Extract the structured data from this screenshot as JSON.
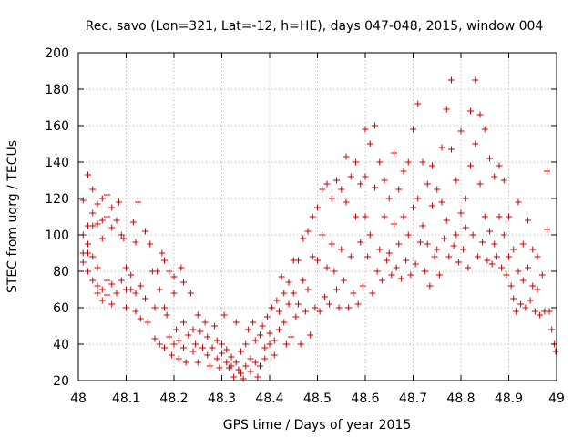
{
  "chart_data": {
    "type": "scatter",
    "title": "Rec. savo (Lon=321, Lat=-12, h=HE), days 047-048, 2015, window 004",
    "xlabel": "GPS time / Days of year 2015",
    "ylabel": "STEC from uqrg / TECUs",
    "xlim": [
      48.0,
      49.0
    ],
    "ylim": [
      20,
      200
    ],
    "xticks": [
      48,
      48.1,
      48.2,
      48.3,
      48.4,
      48.5,
      48.6,
      48.7,
      48.8,
      48.9,
      49
    ],
    "xtick_labels": [
      "48",
      "48.1",
      "48.2",
      "48.3",
      "48.4",
      "48.5",
      "48.6",
      "48.7",
      "48.8",
      "48.9",
      "49"
    ],
    "yticks": [
      20,
      40,
      60,
      80,
      100,
      120,
      140,
      160,
      180,
      200
    ],
    "ytick_labels": [
      "20",
      "40",
      "60",
      "80",
      "100",
      "120",
      "140",
      "160",
      "180",
      "200"
    ],
    "grid": true,
    "marker": "plus",
    "color": "#cc0000",
    "points": [
      [
        48.01,
        119
      ],
      [
        48.01,
        100
      ],
      [
        48.01,
        90
      ],
      [
        48.01,
        85
      ],
      [
        48.02,
        133
      ],
      [
        48.02,
        105
      ],
      [
        48.02,
        95
      ],
      [
        48.02,
        90
      ],
      [
        48.02,
        80
      ],
      [
        48.03,
        125
      ],
      [
        48.03,
        112
      ],
      [
        48.03,
        105
      ],
      [
        48.03,
        88
      ],
      [
        48.03,
        75
      ],
      [
        48.04,
        117
      ],
      [
        48.04,
        106
      ],
      [
        48.04,
        82
      ],
      [
        48.04,
        72
      ],
      [
        48.04,
        68
      ],
      [
        48.05,
        120
      ],
      [
        48.05,
        108
      ],
      [
        48.05,
        98
      ],
      [
        48.05,
        70
      ],
      [
        48.05,
        64
      ],
      [
        48.06,
        122
      ],
      [
        48.06,
        110
      ],
      [
        48.06,
        75
      ],
      [
        48.06,
        67
      ],
      [
        48.07,
        115
      ],
      [
        48.07,
        104
      ],
      [
        48.07,
        73
      ],
      [
        48.07,
        62
      ],
      [
        48.08,
        108
      ],
      [
        48.08,
        68
      ],
      [
        48.085,
        118
      ],
      [
        48.09,
        100
      ],
      [
        48.09,
        75
      ],
      [
        48.095,
        98
      ],
      [
        48.1,
        82
      ],
      [
        48.1,
        70
      ],
      [
        48.1,
        60
      ],
      [
        48.11,
        78
      ],
      [
        48.11,
        70
      ],
      [
        48.115,
        107
      ],
      [
        48.12,
        96
      ],
      [
        48.12,
        68
      ],
      [
        48.12,
        58
      ],
      [
        48.125,
        118
      ],
      [
        48.13,
        72
      ],
      [
        48.13,
        54
      ],
      [
        48.14,
        102
      ],
      [
        48.14,
        65
      ],
      [
        48.145,
        52
      ],
      [
        48.15,
        95
      ],
      [
        48.155,
        80
      ],
      [
        48.16,
        60
      ],
      [
        48.16,
        43
      ],
      [
        48.165,
        80
      ],
      [
        48.17,
        70
      ],
      [
        48.17,
        40
      ],
      [
        48.175,
        90
      ],
      [
        48.18,
        86
      ],
      [
        48.18,
        60
      ],
      [
        48.18,
        38
      ],
      [
        48.185,
        56
      ],
      [
        48.19,
        80
      ],
      [
        48.19,
        44
      ],
      [
        48.195,
        34
      ],
      [
        48.2,
        77
      ],
      [
        48.2,
        68
      ],
      [
        48.2,
        40
      ],
      [
        48.205,
        48
      ],
      [
        48.21,
        42
      ],
      [
        48.21,
        32
      ],
      [
        48.215,
        82
      ],
      [
        48.22,
        74
      ],
      [
        48.22,
        52
      ],
      [
        48.22,
        38
      ],
      [
        48.225,
        30
      ],
      [
        48.23,
        45
      ],
      [
        48.235,
        68
      ],
      [
        48.24,
        48
      ],
      [
        48.24,
        36
      ],
      [
        48.245,
        40
      ],
      [
        48.25,
        56
      ],
      [
        48.25,
        30
      ],
      [
        48.255,
        47
      ],
      [
        48.26,
        38
      ],
      [
        48.265,
        52
      ],
      [
        48.27,
        44
      ],
      [
        48.27,
        34
      ],
      [
        48.275,
        28
      ],
      [
        48.28,
        38
      ],
      [
        48.285,
        50
      ],
      [
        48.29,
        42
      ],
      [
        48.29,
        32
      ],
      [
        48.295,
        27
      ],
      [
        48.3,
        40
      ],
      [
        48.3,
        35
      ],
      [
        48.305,
        56
      ],
      [
        48.31,
        37
      ],
      [
        48.31,
        30
      ],
      [
        48.315,
        27
      ],
      [
        48.32,
        33
      ],
      [
        48.32,
        28
      ],
      [
        48.325,
        22
      ],
      [
        48.33,
        52
      ],
      [
        48.33,
        30
      ],
      [
        48.335,
        26
      ],
      [
        48.34,
        36
      ],
      [
        48.34,
        24
      ],
      [
        48.345,
        21
      ],
      [
        48.35,
        40
      ],
      [
        48.35,
        28
      ],
      [
        48.355,
        48
      ],
      [
        48.36,
        32
      ],
      [
        48.36,
        25
      ],
      [
        48.365,
        52
      ],
      [
        48.37,
        42
      ],
      [
        48.37,
        30
      ],
      [
        48.375,
        22
      ],
      [
        48.38,
        45
      ],
      [
        48.38,
        28
      ],
      [
        48.385,
        50
      ],
      [
        48.39,
        38
      ],
      [
        48.39,
        32
      ],
      [
        48.395,
        55
      ],
      [
        48.4,
        46
      ],
      [
        48.4,
        40
      ],
      [
        48.405,
        60
      ],
      [
        48.41,
        42
      ],
      [
        48.41,
        34
      ],
      [
        48.415,
        64
      ],
      [
        48.42,
        58
      ],
      [
        48.42,
        48
      ],
      [
        48.425,
        77
      ],
      [
        48.43,
        68
      ],
      [
        48.43,
        52
      ],
      [
        48.435,
        40
      ],
      [
        48.44,
        74
      ],
      [
        48.44,
        62
      ],
      [
        48.445,
        44
      ],
      [
        48.45,
        86
      ],
      [
        48.45,
        68
      ],
      [
        48.455,
        55
      ],
      [
        48.46,
        86
      ],
      [
        48.46,
        62
      ],
      [
        48.465,
        40
      ],
      [
        48.47,
        98
      ],
      [
        48.47,
        75
      ],
      [
        48.475,
        58
      ],
      [
        48.48,
        102
      ],
      [
        48.48,
        70
      ],
      [
        48.485,
        45
      ],
      [
        48.49,
        110
      ],
      [
        48.49,
        88
      ],
      [
        48.495,
        60
      ],
      [
        48.5,
        115
      ],
      [
        48.5,
        86
      ],
      [
        48.505,
        58
      ],
      [
        48.51,
        125
      ],
      [
        48.51,
        100
      ],
      [
        48.515,
        66
      ],
      [
        48.52,
        128
      ],
      [
        48.52,
        82
      ],
      [
        48.525,
        62
      ],
      [
        48.53,
        120
      ],
      [
        48.53,
        95
      ],
      [
        48.535,
        80
      ],
      [
        48.54,
        130
      ],
      [
        48.54,
        70
      ],
      [
        48.545,
        60
      ],
      [
        48.55,
        125
      ],
      [
        48.55,
        92
      ],
      [
        48.555,
        75
      ],
      [
        48.56,
        143
      ],
      [
        48.56,
        118
      ],
      [
        48.565,
        60
      ],
      [
        48.57,
        132
      ],
      [
        48.57,
        88
      ],
      [
        48.575,
        68
      ],
      [
        48.58,
        140
      ],
      [
        48.58,
        110
      ],
      [
        48.585,
        62
      ],
      [
        48.59,
        128
      ],
      [
        48.59,
        96
      ],
      [
        48.595,
        72
      ],
      [
        48.6,
        158
      ],
      [
        48.6,
        132
      ],
      [
        48.6,
        110
      ],
      [
        48.605,
        88
      ],
      [
        48.61,
        150
      ],
      [
        48.61,
        100
      ],
      [
        48.615,
        68
      ],
      [
        48.62,
        160
      ],
      [
        48.62,
        126
      ],
      [
        48.625,
        80
      ],
      [
        48.63,
        140
      ],
      [
        48.63,
        92
      ],
      [
        48.635,
        75
      ],
      [
        48.64,
        130
      ],
      [
        48.64,
        110
      ],
      [
        48.645,
        86
      ],
      [
        48.65,
        120
      ],
      [
        48.65,
        90
      ],
      [
        48.655,
        78
      ],
      [
        48.66,
        145
      ],
      [
        48.66,
        106
      ],
      [
        48.665,
        82
      ],
      [
        48.67,
        125
      ],
      [
        48.67,
        95
      ],
      [
        48.675,
        76
      ],
      [
        48.68,
        135
      ],
      [
        48.68,
        110
      ],
      [
        48.685,
        86
      ],
      [
        48.69,
        140
      ],
      [
        48.69,
        100
      ],
      [
        48.695,
        78
      ],
      [
        48.7,
        158
      ],
      [
        48.7,
        115
      ],
      [
        48.705,
        84
      ],
      [
        48.71,
        172
      ],
      [
        48.71,
        120
      ],
      [
        48.715,
        96
      ],
      [
        48.72,
        140
      ],
      [
        48.72,
        105
      ],
      [
        48.725,
        80
      ],
      [
        48.73,
        128
      ],
      [
        48.73,
        95
      ],
      [
        48.735,
        72
      ],
      [
        48.74,
        138
      ],
      [
        48.74,
        116
      ],
      [
        48.745,
        88
      ],
      [
        48.75,
        125
      ],
      [
        48.75,
        92
      ],
      [
        48.755,
        78
      ],
      [
        48.76,
        148
      ],
      [
        48.76,
        118
      ],
      [
        48.765,
        98
      ],
      [
        48.77,
        169
      ],
      [
        48.77,
        108
      ],
      [
        48.775,
        88
      ],
      [
        48.78,
        185
      ],
      [
        48.78,
        147
      ],
      [
        48.785,
        94
      ],
      [
        48.79,
        130
      ],
      [
        48.79,
        100
      ],
      [
        48.795,
        85
      ],
      [
        48.8,
        157
      ],
      [
        48.8,
        112
      ],
      [
        48.805,
        92
      ],
      [
        48.81,
        120
      ],
      [
        48.81,
        104
      ],
      [
        48.815,
        82
      ],
      [
        48.82,
        168
      ],
      [
        48.82,
        138
      ],
      [
        48.825,
        100
      ],
      [
        48.83,
        185
      ],
      [
        48.83,
        150
      ],
      [
        48.835,
        88
      ],
      [
        48.84,
        166
      ],
      [
        48.84,
        128
      ],
      [
        48.845,
        96
      ],
      [
        48.85,
        158
      ],
      [
        48.85,
        110
      ],
      [
        48.855,
        86
      ],
      [
        48.86,
        142
      ],
      [
        48.86,
        102
      ],
      [
        48.865,
        84
      ],
      [
        48.87,
        132
      ],
      [
        48.87,
        95
      ],
      [
        48.875,
        88
      ],
      [
        48.88,
        138
      ],
      [
        48.88,
        110
      ],
      [
        48.885,
        82
      ],
      [
        48.89,
        130
      ],
      [
        48.89,
        100
      ],
      [
        48.895,
        78
      ],
      [
        48.9,
        110
      ],
      [
        48.9,
        88
      ],
      [
        48.905,
        72
      ],
      [
        48.91,
        92
      ],
      [
        48.91,
        65
      ],
      [
        48.915,
        58
      ],
      [
        48.92,
        118
      ],
      [
        48.92,
        80
      ],
      [
        48.925,
        62
      ],
      [
        48.93,
        95
      ],
      [
        48.93,
        75
      ],
      [
        48.935,
        60
      ],
      [
        48.94,
        108
      ],
      [
        48.94,
        82
      ],
      [
        48.945,
        64
      ],
      [
        48.95,
        92
      ],
      [
        48.95,
        72
      ],
      [
        48.955,
        58
      ],
      [
        48.96,
        88
      ],
      [
        48.96,
        70
      ],
      [
        48.965,
        56
      ],
      [
        48.97,
        78
      ],
      [
        48.975,
        58
      ],
      [
        48.98,
        135
      ],
      [
        48.98,
        103
      ],
      [
        48.985,
        58
      ],
      [
        48.99,
        48
      ],
      [
        48.995,
        40
      ],
      [
        48.998,
        36
      ]
    ]
  }
}
